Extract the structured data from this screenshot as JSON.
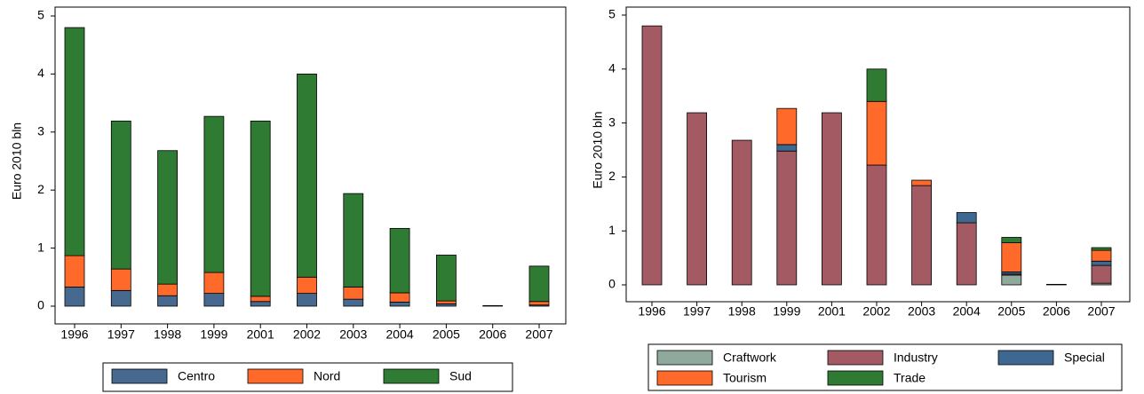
{
  "chart_data": [
    {
      "type": "bar",
      "stacked": true,
      "y_label": "Euro 2010 bln",
      "categories": [
        "1996",
        "1997",
        "1998",
        "1999",
        "2001",
        "2002",
        "2003",
        "2004",
        "2005",
        "2006",
        "2007"
      ],
      "series": [
        {
          "name": "Centro",
          "color": "#48698f",
          "values": [
            0.33,
            0.27,
            0.18,
            0.22,
            0.08,
            0.22,
            0.12,
            0.07,
            0.04,
            0.01,
            0.02
          ]
        },
        {
          "name": "Nord",
          "color": "#ff6a2b",
          "values": [
            0.54,
            0.37,
            0.2,
            0.36,
            0.09,
            0.28,
            0.21,
            0.16,
            0.05,
            0,
            0.06
          ]
        },
        {
          "name": "Sud",
          "color": "#2f7b33",
          "values": [
            3.93,
            2.55,
            2.3,
            2.69,
            3.02,
            3.5,
            1.61,
            1.11,
            0.79,
            0,
            0.61
          ]
        }
      ],
      "ylim": [
        0,
        5
      ],
      "yticks": [
        0,
        1,
        2,
        3,
        4,
        5
      ],
      "legend": "bottom"
    },
    {
      "type": "bar",
      "stacked": true,
      "y_label": "Euro 2010 bln",
      "categories": [
        "1996",
        "1997",
        "1998",
        "1999",
        "2001",
        "2002",
        "2003",
        "2004",
        "2005",
        "2006",
        "2007"
      ],
      "series": [
        {
          "name": "Craftwork",
          "color": "#8fa99c",
          "values": [
            0,
            0,
            0,
            0,
            0,
            0,
            0,
            0,
            0.18,
            0,
            0.03
          ]
        },
        {
          "name": "Industry",
          "color": "#a45a62",
          "values": [
            4.8,
            3.19,
            2.68,
            2.48,
            3.19,
            2.22,
            1.84,
            1.15,
            0.02,
            0.01,
            0.33
          ]
        },
        {
          "name": "Special",
          "color": "#3f6890",
          "values": [
            0,
            0,
            0,
            0.12,
            0,
            0,
            0,
            0.19,
            0.04,
            0,
            0.08
          ]
        },
        {
          "name": "Tourism",
          "color": "#ff6a2b",
          "values": [
            0,
            0,
            0,
            0.67,
            0,
            1.18,
            0.1,
            0,
            0.54,
            0,
            0.2
          ]
        },
        {
          "name": "Trade",
          "color": "#2f7b33",
          "values": [
            0,
            0,
            0,
            0,
            0,
            0.6,
            0,
            0,
            0.1,
            0,
            0.05
          ]
        }
      ],
      "ylim": [
        0,
        5
      ],
      "yticks": [
        0,
        1,
        2,
        3,
        4,
        5
      ],
      "legend": "bottom"
    }
  ]
}
